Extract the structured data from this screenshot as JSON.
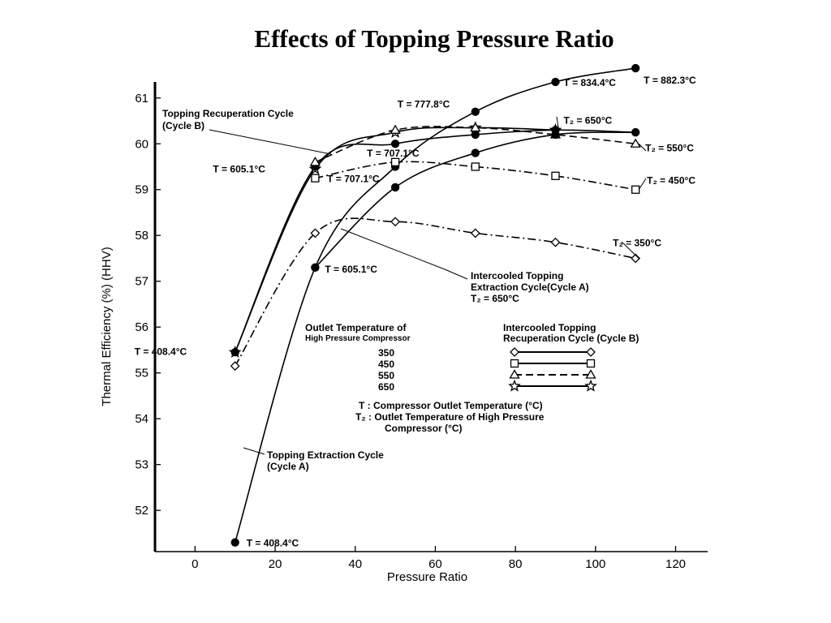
{
  "title": "Effects of Topping Pressure Ratio",
  "chart_data": {
    "type": "line",
    "title": "Effects of Topping Pressure Ratio",
    "xlabel": "Pressure Ratio",
    "ylabel": "Thermal Efficiency (%) (HHV)",
    "xlim": [
      -10,
      128
    ],
    "ylim": [
      51.1,
      61.35
    ],
    "xticks": [
      "0",
      "20",
      "40",
      "60",
      "80",
      "100",
      "120"
    ],
    "yticks": [
      "52",
      "53",
      "54",
      "55",
      "56",
      "57",
      "58",
      "59",
      "60",
      "61"
    ],
    "grid": false,
    "series": [
      {
        "name": "Topping Extraction Cycle (Cycle A)",
        "marker": "filled-circle",
        "style": "solid",
        "points": [
          [
            10,
            51.3
          ],
          [
            30,
            57.3
          ],
          [
            50,
            59.5
          ],
          [
            70,
            60.7
          ],
          [
            90,
            61.35
          ],
          [
            110,
            61.65
          ]
        ]
      },
      {
        "name": "Cycle B T2 = 650°C",
        "marker": "star",
        "style": "solid",
        "points": [
          [
            10,
            55.45
          ],
          [
            30,
            59.45
          ],
          [
            50,
            60.25
          ],
          [
            70,
            60.35
          ],
          [
            90,
            60.3
          ]
        ]
      },
      {
        "name": "Cycle A T2 = 550°C",
        "marker": "filled-circle",
        "style": "solid",
        "points": [
          [
            10,
            55.45
          ],
          [
            30,
            59.5
          ],
          [
            50,
            60.0
          ],
          [
            70,
            60.2
          ],
          [
            90,
            60.3
          ],
          [
            110,
            60.25
          ]
        ]
      },
      {
        "name": "Cycle B T2 = 550°C",
        "marker": "triangle",
        "style": "dash",
        "points": [
          [
            30,
            59.6
          ],
          [
            50,
            60.3
          ],
          [
            70,
            60.35
          ],
          [
            90,
            60.2
          ],
          [
            110,
            60.0
          ]
        ]
      },
      {
        "name": "Cycle B T2 = 450°C",
        "marker": "square",
        "style": "dash-dot",
        "points": [
          [
            30,
            59.25
          ],
          [
            50,
            59.6
          ],
          [
            70,
            59.5
          ],
          [
            90,
            59.3
          ],
          [
            110,
            59.0
          ]
        ]
      },
      {
        "name": "Cycle B T2 = 350°C",
        "marker": "diamond",
        "style": "dash-dot",
        "points": [
          [
            10,
            55.15
          ],
          [
            30,
            58.05
          ],
          [
            50,
            58.3
          ],
          [
            70,
            58.05
          ],
          [
            90,
            57.85
          ],
          [
            110,
            57.5
          ]
        ]
      },
      {
        "name": "Cycle A T = 605.1°C to 707.1°C",
        "marker": "filled-circle",
        "style": "solid",
        "points": [
          [
            30,
            57.3
          ],
          [
            50,
            59.05
          ],
          [
            70,
            59.8
          ],
          [
            90,
            60.2
          ],
          [
            110,
            60.25
          ]
        ]
      }
    ],
    "annotations": [
      {
        "text": "T = 882.3°C",
        "x": 110,
        "y": 61.65
      },
      {
        "text": "T = 834.4°C",
        "x": 90,
        "y": 61.35
      },
      {
        "text": "T = 777.8°C",
        "x": 70,
        "y": 60.7
      },
      {
        "text": "T₂ = 650°C",
        "x": 90,
        "y": 60.3
      },
      {
        "text": "T₂ = 550°C",
        "x": 110,
        "y": 60.0
      },
      {
        "text": "T₂ = 450°C",
        "x": 110,
        "y": 59.0
      },
      {
        "text": "T₂ = 350°C",
        "x": 110,
        "y": 57.5
      },
      {
        "text": "T = 707.1°C",
        "x": 50,
        "y": 59.6
      },
      {
        "text": "T = 707.1°C",
        "x": 50,
        "y": 59.5
      },
      {
        "text": "T = 605.1°C",
        "x": 30,
        "y": 59.45
      },
      {
        "text": "T = 605.1°C",
        "x": 30,
        "y": 57.3
      },
      {
        "text": "T = 408.4°C",
        "x": 10,
        "y": 55.45
      },
      {
        "text": "T = 408.4°C",
        "x": 10,
        "y": 51.3
      }
    ],
    "callouts": {
      "recup": [
        "Topping Recuperation Cycle",
        "(Cycle B)"
      ],
      "interc": [
        "Intercooled Topping",
        "Extraction Cycle(Cycle A)",
        "T₂ = 650°C"
      ],
      "extract": [
        "Topping Extraction Cycle",
        "(Cycle A)"
      ]
    },
    "legend": {
      "header_left": [
        "Outlet Temperature of",
        "High Pressure Compressor"
      ],
      "header_right": [
        "Intercooled Topping",
        "Recuperation Cycle (Cycle B)"
      ],
      "rows": [
        {
          "label": "350",
          "marker": "diamond",
          "style": "solid"
        },
        {
          "label": "450",
          "marker": "square",
          "style": "solid"
        },
        {
          "label": "550",
          "marker": "triangle",
          "style": "dash"
        },
        {
          "label": "650",
          "marker": "star",
          "style": "solid"
        }
      ],
      "notes": [
        "T  : Compressor Outlet Temperature (°C)",
        "T₂ : Outlet Temperature of High Pressure",
        "Compressor (°C)"
      ]
    }
  }
}
